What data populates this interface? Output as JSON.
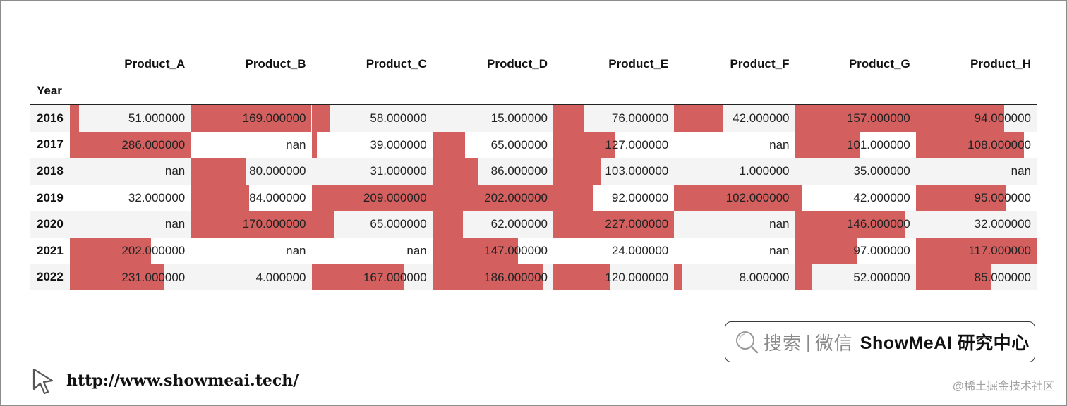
{
  "table": {
    "index_name": "Year",
    "columns": [
      "Product_A",
      "Product_B",
      "Product_C",
      "Product_D",
      "Product_E",
      "Product_F",
      "Product_G",
      "Product_H"
    ],
    "bar_color": "#d45f5f",
    "rows": [
      {
        "year": "2016",
        "values": [
          "51.000000",
          "169.000000",
          "58.000000",
          "15.000000",
          "76.000000",
          "42.000000",
          "157.000000",
          "94.000000"
        ]
      },
      {
        "year": "2017",
        "values": [
          "286.000000",
          "nan",
          "39.000000",
          "65.000000",
          "127.000000",
          "nan",
          "101.000000",
          "108.000000"
        ]
      },
      {
        "year": "2018",
        "values": [
          "nan",
          "80.000000",
          "31.000000",
          "86.000000",
          "103.000000",
          "1.000000",
          "35.000000",
          "nan"
        ]
      },
      {
        "year": "2019",
        "values": [
          "32.000000",
          "84.000000",
          "209.000000",
          "202.000000",
          "92.000000",
          "102.000000",
          "42.000000",
          "95.000000"
        ]
      },
      {
        "year": "2020",
        "values": [
          "nan",
          "170.000000",
          "65.000000",
          "62.000000",
          "227.000000",
          "nan",
          "146.000000",
          "32.000000"
        ]
      },
      {
        "year": "2021",
        "values": [
          "202.000000",
          "nan",
          "nan",
          "147.000000",
          "24.000000",
          "nan",
          "97.000000",
          "117.000000"
        ]
      },
      {
        "year": "2022",
        "values": [
          "231.000000",
          "4.000000",
          "167.000000",
          "186.000000",
          "120.000000",
          "8.000000",
          "52.000000",
          "85.000000"
        ]
      }
    ]
  },
  "branding": {
    "search_label": "搜索",
    "separator": "|",
    "wechat_label": "微信",
    "brand_name": "ShowMeAI 研究中心",
    "url": "http://www.showmeai.tech/",
    "watermark": "@稀土掘金技术社区"
  },
  "icons": {
    "search": "search-icon",
    "cursor": "cursor-icon"
  }
}
